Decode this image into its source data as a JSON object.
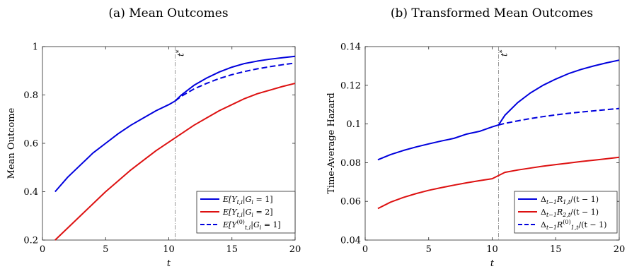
{
  "chart_data": [
    {
      "type": "line",
      "title": "(a) Mean Outcomes",
      "xlabel": "t",
      "ylabel": "Mean Outcome",
      "xlim": [
        0,
        20
      ],
      "ylim": [
        0.2,
        1.0
      ],
      "xticks": [
        0,
        5,
        10,
        15,
        20
      ],
      "yticks": [
        0.2,
        0.4,
        0.6,
        0.8,
        1.0
      ],
      "ytick_labels": [
        "0.2",
        "0.4",
        "0.6",
        "0.8",
        "1"
      ],
      "xtick_labels": [
        "0",
        "5",
        "10",
        "15",
        "20"
      ],
      "vline": {
        "x": 10.5,
        "label": "t*"
      },
      "legend_position": "bottom-right",
      "series": [
        {
          "name": "E[Y_{t,i} | G_i = 1]",
          "color": "#0000dd",
          "style": "solid",
          "x": [
            1,
            2,
            3,
            4,
            5,
            6,
            7,
            8,
            9,
            10,
            10.5,
            11,
            12,
            13,
            14,
            15,
            16,
            17,
            18,
            19,
            20
          ],
          "y": [
            0.4,
            0.46,
            0.51,
            0.56,
            0.6,
            0.64,
            0.675,
            0.705,
            0.735,
            0.76,
            0.775,
            0.8,
            0.84,
            0.87,
            0.895,
            0.915,
            0.93,
            0.94,
            0.948,
            0.954,
            0.96
          ]
        },
        {
          "name": "E[Y_{t,i} | G_i = 2]",
          "color": "#dd1111",
          "style": "solid",
          "x": [
            1,
            2,
            3,
            4,
            5,
            6,
            7,
            8,
            9,
            10,
            11,
            12,
            13,
            14,
            15,
            16,
            17,
            18,
            19,
            20
          ],
          "y": [
            0.2,
            0.25,
            0.3,
            0.35,
            0.4,
            0.445,
            0.49,
            0.53,
            0.57,
            0.605,
            0.64,
            0.675,
            0.705,
            0.735,
            0.76,
            0.785,
            0.805,
            0.82,
            0.835,
            0.848
          ]
        },
        {
          "name": "E[Y_{t,i}^{(0)} | G_i = 1]",
          "color": "#0000dd",
          "style": "dashed",
          "x": [
            10.5,
            11,
            12,
            13,
            14,
            15,
            16,
            17,
            18,
            19,
            20
          ],
          "y": [
            0.775,
            0.795,
            0.825,
            0.848,
            0.868,
            0.884,
            0.897,
            0.908,
            0.917,
            0.925,
            0.932
          ]
        }
      ]
    },
    {
      "type": "line",
      "title": "(b) Transformed Mean Outcomes",
      "xlabel": "t",
      "ylabel": "Time-Average Hazard",
      "xlim": [
        0,
        20
      ],
      "ylim": [
        0.04,
        0.14
      ],
      "xticks": [
        0,
        5,
        10,
        15,
        20
      ],
      "yticks": [
        0.04,
        0.06,
        0.08,
        0.1,
        0.12,
        0.14
      ],
      "ytick_labels": [
        "0.04",
        "0.06",
        "0.08",
        "0.1",
        "0.12",
        "0.14"
      ],
      "xtick_labels": [
        "0",
        "5",
        "10",
        "15",
        "20"
      ],
      "vline": {
        "x": 10.5,
        "label": "t*"
      },
      "legend_position": "bottom-right",
      "series": [
        {
          "name": "Δ_{t−1} R_{1,t} / (t − 1)",
          "color": "#0000dd",
          "style": "solid",
          "x": [
            1,
            2,
            3,
            4,
            5,
            6,
            7,
            8,
            9,
            10,
            10.5,
            11,
            12,
            13,
            14,
            15,
            16,
            17,
            18,
            19,
            20
          ],
          "y": [
            0.0815,
            0.0842,
            0.0863,
            0.0881,
            0.0897,
            0.0912,
            0.0926,
            0.0948,
            0.0962,
            0.0985,
            0.0995,
            0.1045,
            0.111,
            0.116,
            0.12,
            0.1232,
            0.126,
            0.1282,
            0.13,
            0.1316,
            0.133
          ]
        },
        {
          "name": "Δ_{t−1} R_{2,t} / (t − 1)",
          "color": "#dd1111",
          "style": "solid",
          "x": [
            1,
            2,
            3,
            4,
            5,
            6,
            7,
            8,
            9,
            10,
            11,
            12,
            13,
            14,
            15,
            16,
            17,
            18,
            19,
            20
          ],
          "y": [
            0.0563,
            0.0596,
            0.062,
            0.064,
            0.0657,
            0.0671,
            0.0684,
            0.0696,
            0.0707,
            0.0717,
            0.075,
            0.0762,
            0.0772,
            0.0782,
            0.079,
            0.0798,
            0.0806,
            0.0813,
            0.082,
            0.0828
          ]
        },
        {
          "name": "Δ_{t−1} R_{1,t}^{(0)} / (t − 1)",
          "color": "#0000dd",
          "style": "dashed",
          "x": [
            10.5,
            11,
            12,
            13,
            14,
            15,
            16,
            17,
            18,
            19,
            20
          ],
          "y": [
            0.0995,
            0.1003,
            0.1016,
            0.1028,
            0.1038,
            0.1047,
            0.1055,
            0.1062,
            0.1068,
            0.1074,
            0.108
          ]
        }
      ]
    }
  ],
  "legends": [
    [
      {
        "main": "E[Y",
        "sub": "t,i",
        "sup": "",
        "rest": "|G",
        "sub2": "i",
        "tail": " = 1]"
      },
      {
        "main": "E[Y",
        "sub": "t,i",
        "sup": "",
        "rest": "|G",
        "sub2": "i",
        "tail": " = 2]"
      },
      {
        "main": "E[Y",
        "sub": "t,i",
        "sup": "(0)",
        "rest": "|G",
        "sub2": "i",
        "tail": " = 1]"
      }
    ],
    [
      {
        "main": "Δ",
        "sub": "t−1",
        "mid": "R",
        "sub2": "1,t",
        "sup": "",
        "tail": "/(t − 1)"
      },
      {
        "main": "Δ",
        "sub": "t−1",
        "mid": "R",
        "sub2": "2,t",
        "sup": "",
        "tail": "/(t − 1)"
      },
      {
        "main": "Δ",
        "sub": "t−1",
        "mid": "R",
        "sub2": "1,t",
        "sup": "(0)",
        "tail": "/(t − 1)"
      }
    ]
  ]
}
